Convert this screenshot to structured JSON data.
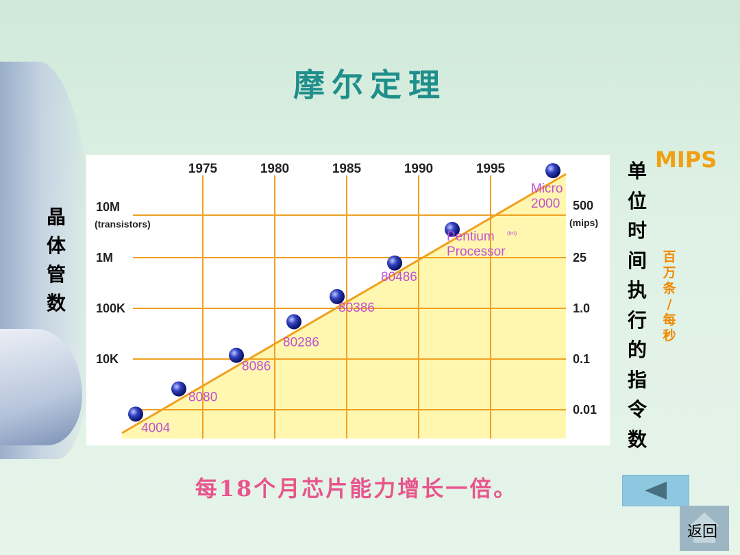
{
  "title": "摩尔定理",
  "left_axis_label_chars": [
    "晶",
    "体",
    "管",
    "数"
  ],
  "right_axis_label_chars": [
    "单",
    "位",
    "时",
    "间",
    "执",
    "行",
    "的",
    "指",
    "令",
    "数"
  ],
  "mips_label": "MIPS",
  "unit_chars": [
    "百",
    "万",
    "条",
    "/",
    "每",
    "秒"
  ],
  "caption": "每18个月芯片能力增长一倍。",
  "back_button": {
    "icon": "triangle-left-icon"
  },
  "home_button": {
    "label": "返回",
    "icon": "home-icon"
  },
  "chart_data": {
    "type": "scatter",
    "x_ticks": [
      "1975",
      "1980",
      "1985",
      "1990",
      "1995"
    ],
    "left_ticks": [
      "10M",
      "1M",
      "100K",
      "10K"
    ],
    "left_axis_unit": "(transistors)",
    "right_ticks": [
      "500",
      "25",
      "1.0",
      "0.1",
      "0.01"
    ],
    "right_axis_unit": "(mips)",
    "points": [
      {
        "label": "4004",
        "year": 1971
      },
      {
        "label": "8080",
        "year": 1974
      },
      {
        "label": "8086",
        "year": 1978
      },
      {
        "label": "80286",
        "year": 1982
      },
      {
        "label": "80386",
        "year": 1985
      },
      {
        "label": "80486",
        "year": 1989
      },
      {
        "label": "Pentium",
        "label2": "Processor",
        "sup": "(tm)",
        "year": 1993
      },
      {
        "label": "Micro",
        "label2": "2000",
        "year": 2000
      }
    ],
    "colors": {
      "grid": "#f0a020",
      "trend_fill": "#fff7b0",
      "point": "#2030b0",
      "point_label": "#c050d0"
    }
  }
}
